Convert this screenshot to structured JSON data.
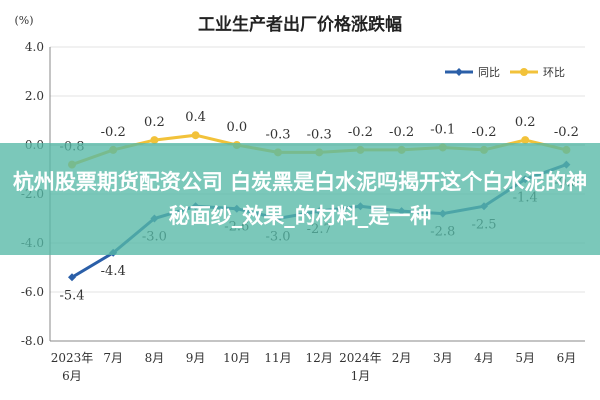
{
  "chart_data": {
    "type": "line",
    "title": "工业生产者出厂价格涨跌幅",
    "ylabel": "(%)",
    "xlabel": "",
    "ylim": [
      -8.0,
      4.0
    ],
    "yticks": [
      "4.0",
      "2.0",
      "0.0",
      "-2.0",
      "-4.0",
      "-6.0",
      "-8.0"
    ],
    "categories": [
      "2023年6月",
      "7月",
      "8月",
      "9月",
      "10月",
      "11月",
      "12月",
      "2024年1月",
      "2月",
      "3月",
      "4月",
      "5月",
      "6月"
    ],
    "series": [
      {
        "name": "同比",
        "color": "#2b5fa8",
        "values": [
          -5.4,
          -4.4,
          -3.0,
          -2.5,
          -2.6,
          -3.0,
          -2.7,
          -2.5,
          -2.7,
          -2.8,
          -2.5,
          -1.4,
          -0.8
        ],
        "labels": [
          "-5.4",
          "-4.4",
          "-3.0",
          "",
          "-2.6",
          "-3.0",
          "-2.7",
          "",
          "",
          "-2.8",
          "-2.5",
          "-1.4",
          "-0.8"
        ]
      },
      {
        "name": "环比",
        "color": "#f2c23a",
        "values": [
          -0.8,
          -0.2,
          0.2,
          0.4,
          0.0,
          -0.3,
          -0.3,
          -0.2,
          -0.2,
          -0.1,
          -0.2,
          0.2,
          -0.2
        ],
        "labels": [
          "-0.8",
          "-0.2",
          "0.2",
          "0.4",
          "0.0",
          "-0.3",
          "-0.3",
          "-0.2",
          "-0.2",
          "-0.1",
          "-0.2",
          "0.2",
          "-0.2"
        ]
      }
    ],
    "grid": true,
    "legend": "top-right"
  },
  "overlay": {
    "text": "杭州股票期货配资公司 白炭黑是白水泥吗揭开这个白水泥的神秘面纱_效果_的材料_是一种"
  }
}
